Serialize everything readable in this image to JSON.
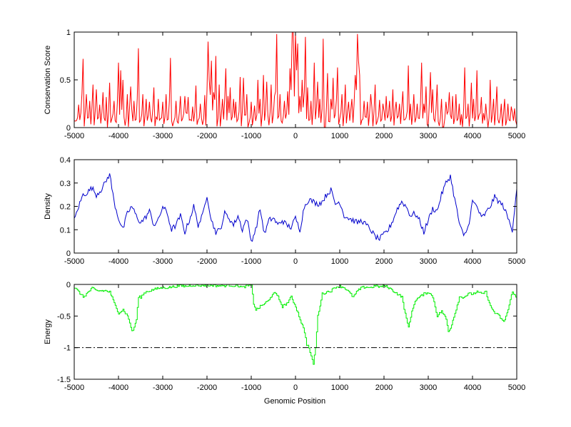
{
  "figure": {
    "xlabel": "Genomic Position"
  },
  "chart_data": [
    {
      "type": "line",
      "ylabel": "Conservation Score",
      "xlim": [
        -5000,
        5000
      ],
      "ylim": [
        0,
        1
      ],
      "xticks": [
        -5000,
        -4000,
        -3000,
        -2000,
        -1000,
        0,
        1000,
        2000,
        3000,
        4000,
        5000
      ],
      "yticks": [
        0,
        0.5,
        1
      ],
      "ytick_labels": [
        "0",
        "0.5",
        "1"
      ],
      "color": "#ff0000",
      "step": 25,
      "noise_level": 0.06,
      "spikes": [
        [
          -4900,
          0.24
        ],
        [
          -4800,
          0.72
        ],
        [
          -4720,
          0.35
        ],
        [
          -4650,
          0.28
        ],
        [
          -4580,
          0.45
        ],
        [
          -4500,
          0.4
        ],
        [
          -4420,
          0.24
        ],
        [
          -4350,
          0.37
        ],
        [
          -4280,
          0.32
        ],
        [
          -4200,
          0.47
        ],
        [
          -4100,
          0.28
        ],
        [
          -4000,
          0.68
        ],
        [
          -3960,
          0.6
        ],
        [
          -3900,
          0.5
        ],
        [
          -3800,
          0.35
        ],
        [
          -3720,
          0.43
        ],
        [
          -3640,
          0.28
        ],
        [
          -3550,
          0.83
        ],
        [
          -3450,
          0.35
        ],
        [
          -3380,
          0.3
        ],
        [
          -3300,
          0.27
        ],
        [
          -3200,
          0.42
        ],
        [
          -3100,
          0.3
        ],
        [
          -3000,
          0.27
        ],
        [
          -2920,
          0.35
        ],
        [
          -2820,
          0.73
        ],
        [
          -2700,
          0.28
        ],
        [
          -2600,
          0.33
        ],
        [
          -2500,
          0.33
        ],
        [
          -2420,
          0.32
        ],
        [
          -2330,
          0.22
        ],
        [
          -2250,
          0.44
        ],
        [
          -2150,
          0.25
        ],
        [
          -2050,
          0.34
        ],
        [
          -1980,
          0.9
        ],
        [
          -1950,
          0.5
        ],
        [
          -1900,
          0.7
        ],
        [
          -1850,
          0.37
        ],
        [
          -1800,
          0.75
        ],
        [
          -1720,
          0.45
        ],
        [
          -1640,
          0.3
        ],
        [
          -1580,
          0.62
        ],
        [
          -1520,
          0.33
        ],
        [
          -1470,
          0.42
        ],
        [
          -1400,
          0.3
        ],
        [
          -1350,
          0.27
        ],
        [
          -1250,
          0.53
        ],
        [
          -1180,
          0.52
        ],
        [
          -1100,
          0.35
        ],
        [
          -1000,
          0.27
        ],
        [
          -930,
          0.23
        ],
        [
          -850,
          0.5
        ],
        [
          -800,
          0.3
        ],
        [
          -720,
          0.55
        ],
        [
          -650,
          0.48
        ],
        [
          -560,
          0.45
        ],
        [
          -480,
          0.33
        ],
        [
          -420,
          0.98
        ],
        [
          -350,
          0.35
        ],
        [
          -250,
          0.28
        ],
        [
          -180,
          0.38
        ],
        [
          -130,
          0.62
        ],
        [
          -70,
          1.0
        ],
        [
          -40,
          1.0
        ],
        [
          -10,
          0.98
        ],
        [
          20,
          0.6
        ],
        [
          60,
          0.88
        ],
        [
          100,
          0.33
        ],
        [
          150,
          0.5
        ],
        [
          230,
          0.95
        ],
        [
          280,
          0.42
        ],
        [
          360,
          0.28
        ],
        [
          430,
          0.68
        ],
        [
          500,
          0.48
        ],
        [
          560,
          0.3
        ],
        [
          620,
          0.93
        ],
        [
          720,
          0.57
        ],
        [
          800,
          0.3
        ],
        [
          860,
          0.52
        ],
        [
          950,
          0.63
        ],
        [
          1040,
          0.35
        ],
        [
          1120,
          0.45
        ],
        [
          1200,
          0.27
        ],
        [
          1280,
          0.3
        ],
        [
          1340,
          0.55
        ],
        [
          1400,
          0.98
        ],
        [
          1430,
          0.7
        ],
        [
          1460,
          0.55
        ],
        [
          1550,
          0.28
        ],
        [
          1620,
          0.27
        ],
        [
          1700,
          0.35
        ],
        [
          1800,
          0.45
        ],
        [
          1900,
          0.29
        ],
        [
          1980,
          0.25
        ],
        [
          2050,
          0.33
        ],
        [
          2120,
          0.28
        ],
        [
          2200,
          0.4
        ],
        [
          2280,
          0.27
        ],
        [
          2350,
          0.25
        ],
        [
          2430,
          0.38
        ],
        [
          2550,
          0.65
        ],
        [
          2600,
          0.25
        ],
        [
          2680,
          0.35
        ],
        [
          2750,
          0.25
        ],
        [
          2850,
          0.68
        ],
        [
          2900,
          0.25
        ],
        [
          2960,
          0.43
        ],
        [
          3050,
          0.58
        ],
        [
          3100,
          0.4
        ],
        [
          3200,
          0.45
        ],
        [
          3300,
          0.3
        ],
        [
          3400,
          0.27
        ],
        [
          3480,
          0.37
        ],
        [
          3550,
          0.33
        ],
        [
          3630,
          0.35
        ],
        [
          3700,
          0.25
        ],
        [
          3820,
          0.63
        ],
        [
          3900,
          0.25
        ],
        [
          3980,
          0.47
        ],
        [
          4030,
          0.3
        ],
        [
          4100,
          0.6
        ],
        [
          4200,
          0.32
        ],
        [
          4300,
          0.25
        ],
        [
          4400,
          0.5
        ],
        [
          4480,
          0.3
        ],
        [
          4560,
          0.43
        ],
        [
          4650,
          0.25
        ],
        [
          4720,
          0.3
        ],
        [
          4800,
          0.25
        ],
        [
          4880,
          0.22
        ],
        [
          4950,
          0.2
        ]
      ]
    },
    {
      "type": "line",
      "ylabel": "Density",
      "xlim": [
        -5000,
        5000
      ],
      "ylim": [
        0,
        0.4
      ],
      "xticks": [
        -5000,
        -4000,
        -3000,
        -2000,
        -1000,
        0,
        1000,
        2000,
        3000,
        4000,
        5000
      ],
      "yticks": [
        0,
        0.1,
        0.2,
        0.3,
        0.4
      ],
      "ytick_labels": [
        "0",
        "0.1",
        "0.2",
        "0.3",
        "0.4"
      ],
      "color": "#0000cc",
      "step": 25,
      "noise_level": 0.012,
      "x": [
        -5000,
        -4900,
        -4800,
        -4700,
        -4600,
        -4500,
        -4400,
        -4300,
        -4200,
        -4100,
        -4000,
        -3900,
        -3800,
        -3700,
        -3600,
        -3500,
        -3400,
        -3300,
        -3200,
        -3100,
        -3000,
        -2900,
        -2800,
        -2700,
        -2600,
        -2500,
        -2400,
        -2300,
        -2200,
        -2100,
        -2000,
        -1900,
        -1800,
        -1700,
        -1600,
        -1500,
        -1400,
        -1300,
        -1200,
        -1100,
        -1000,
        -900,
        -800,
        -700,
        -600,
        -500,
        -400,
        -300,
        -200,
        -100,
        0,
        100,
        200,
        300,
        400,
        500,
        600,
        700,
        800,
        900,
        1000,
        1100,
        1200,
        1300,
        1400,
        1500,
        1600,
        1700,
        1800,
        1900,
        2000,
        2100,
        2200,
        2300,
        2400,
        2500,
        2600,
        2700,
        2800,
        2900,
        3000,
        3100,
        3200,
        3300,
        3400,
        3500,
        3600,
        3700,
        3800,
        3900,
        4000,
        4100,
        4200,
        4300,
        4400,
        4500,
        4600,
        4700,
        4800,
        4900,
        5000
      ],
      "y": [
        0.14,
        0.2,
        0.25,
        0.26,
        0.28,
        0.25,
        0.27,
        0.3,
        0.34,
        0.22,
        0.15,
        0.1,
        0.17,
        0.2,
        0.16,
        0.13,
        0.15,
        0.18,
        0.12,
        0.14,
        0.2,
        0.17,
        0.1,
        0.12,
        0.16,
        0.09,
        0.14,
        0.2,
        0.12,
        0.16,
        0.25,
        0.14,
        0.09,
        0.1,
        0.17,
        0.15,
        0.12,
        0.16,
        0.1,
        0.15,
        0.05,
        0.1,
        0.19,
        0.08,
        0.14,
        0.15,
        0.12,
        0.14,
        0.12,
        0.11,
        0.15,
        0.1,
        0.2,
        0.23,
        0.22,
        0.21,
        0.22,
        0.25,
        0.27,
        0.21,
        0.22,
        0.16,
        0.15,
        0.14,
        0.13,
        0.14,
        0.12,
        0.1,
        0.07,
        0.06,
        0.08,
        0.1,
        0.14,
        0.19,
        0.22,
        0.2,
        0.16,
        0.17,
        0.14,
        0.09,
        0.14,
        0.19,
        0.18,
        0.25,
        0.3,
        0.33,
        0.23,
        0.13,
        0.07,
        0.11,
        0.22,
        0.2,
        0.15,
        0.17,
        0.2,
        0.24,
        0.22,
        0.2,
        0.15,
        0.1,
        0.28
      ]
    },
    {
      "type": "line",
      "ylabel": "Energy",
      "xlim": [
        -5000,
        5000
      ],
      "ylim": [
        -1.5,
        0
      ],
      "xticks": [
        -5000,
        -4000,
        -3000,
        -2000,
        -1000,
        0,
        1000,
        2000,
        3000,
        4000,
        5000
      ],
      "yticks": [
        -1.5,
        -1,
        -0.5,
        0
      ],
      "ytick_labels": [
        "-1.5",
        "-1",
        "-0.5",
        "0"
      ],
      "color": "#00ee00",
      "step": 25,
      "noise_level": 0.02,
      "threshold": -1,
      "x": [
        -5000,
        -4900,
        -4800,
        -4700,
        -4600,
        -4500,
        -4400,
        -4300,
        -4200,
        -4100,
        -4000,
        -3900,
        -3800,
        -3750,
        -3700,
        -3650,
        -3600,
        -3550,
        -3500,
        -3400,
        -3300,
        -3200,
        -3100,
        -3000,
        -2900,
        -2800,
        -2700,
        -2600,
        -2500,
        -2400,
        -2300,
        -2200,
        -2100,
        -2000,
        -1900,
        -1800,
        -1700,
        -1600,
        -1500,
        -1400,
        -1300,
        -1200,
        -1100,
        -1000,
        -950,
        -900,
        -850,
        -800,
        -700,
        -600,
        -500,
        -400,
        -300,
        -200,
        -100,
        0,
        100,
        150,
        200,
        250,
        300,
        350,
        400,
        450,
        500,
        600,
        700,
        800,
        900,
        1000,
        1100,
        1200,
        1300,
        1400,
        1500,
        1600,
        1700,
        1800,
        1900,
        2000,
        2100,
        2200,
        2300,
        2400,
        2500,
        2550,
        2600,
        2700,
        2800,
        2900,
        3000,
        3100,
        3150,
        3200,
        3300,
        3400,
        3450,
        3500,
        3600,
        3700,
        3800,
        3900,
        4000,
        4100,
        4200,
        4300,
        4400,
        4500,
        4600,
        4700,
        4800,
        4900,
        5000
      ],
      "y": [
        -0.05,
        -0.12,
        -0.2,
        -0.13,
        -0.06,
        -0.1,
        -0.1,
        -0.1,
        -0.12,
        -0.3,
        -0.45,
        -0.4,
        -0.5,
        -0.6,
        -0.75,
        -0.68,
        -0.55,
        -0.2,
        -0.2,
        -0.12,
        -0.1,
        -0.08,
        -0.06,
        -0.05,
        -0.05,
        -0.04,
        -0.03,
        -0.02,
        -0.03,
        -0.02,
        -0.01,
        -0.02,
        -0.01,
        -0.02,
        -0.01,
        -0.02,
        -0.02,
        -0.02,
        -0.01,
        -0.02,
        -0.02,
        -0.05,
        -0.02,
        -0.02,
        -0.3,
        -0.4,
        -0.38,
        -0.35,
        -0.3,
        -0.25,
        -0.12,
        -0.2,
        -0.35,
        -0.3,
        -0.2,
        -0.35,
        -0.55,
        -0.65,
        -0.75,
        -0.95,
        -1.0,
        -1.15,
        -1.25,
        -1.0,
        -0.5,
        -0.15,
        -0.12,
        -0.1,
        -0.04,
        -0.03,
        -0.05,
        -0.12,
        -0.2,
        -0.1,
        -0.05,
        -0.04,
        -0.05,
        -0.02,
        -0.04,
        -0.02,
        -0.05,
        -0.1,
        -0.15,
        -0.2,
        -0.55,
        -0.68,
        -0.5,
        -0.25,
        -0.2,
        -0.15,
        -0.12,
        -0.2,
        -0.35,
        -0.5,
        -0.42,
        -0.55,
        -0.75,
        -0.68,
        -0.45,
        -0.2,
        -0.2,
        -0.15,
        -0.15,
        -0.12,
        -0.15,
        -0.12,
        -0.35,
        -0.45,
        -0.5,
        -0.6,
        -0.4,
        -0.1,
        -0.25
      ]
    }
  ]
}
